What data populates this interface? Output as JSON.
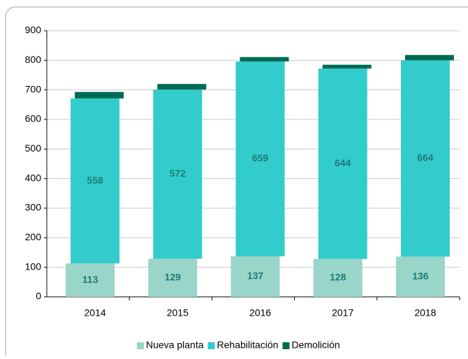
{
  "chart_data": {
    "type": "stacked_bar",
    "categories": [
      "2014",
      "2015",
      "2016",
      "2017",
      "2018"
    ],
    "series": [
      {
        "name": "Nueva planta",
        "color": "#99d5c9",
        "values": [
          113,
          129,
          137,
          128,
          136
        ]
      },
      {
        "name": "Rehabilitación",
        "color": "#33cccc",
        "values": [
          558,
          572,
          659,
          644,
          664
        ]
      },
      {
        "name": "Demolición",
        "color": "#006b54",
        "values": [
          22,
          19,
          15,
          13,
          18
        ]
      }
    ],
    "show_value_labels": [
      "Nueva planta",
      "Rehabilitación"
    ],
    "ylim": [
      0,
      900
    ],
    "yticks": [
      0,
      100,
      200,
      300,
      400,
      500,
      600,
      700,
      800,
      900
    ],
    "grid": true,
    "legend": "bottom"
  }
}
